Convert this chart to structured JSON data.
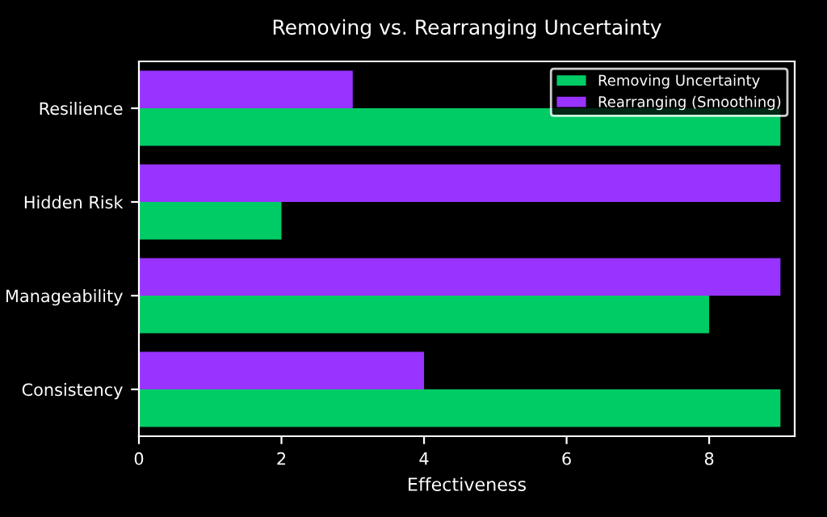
{
  "chart_data": {
    "type": "bar",
    "orientation": "horizontal",
    "title": "Removing vs. Rearranging Uncertainty",
    "xlabel": "Effectiveness",
    "categories": [
      "Resilience",
      "Hidden Risk",
      "Manageability",
      "Consistency"
    ],
    "series": [
      {
        "name": "Removing Uncertainty",
        "color": "#00cc66",
        "values": [
          9,
          2,
          8,
          9
        ]
      },
      {
        "name": "Rearranging (Smoothing)",
        "color": "#9933ff",
        "values": [
          3,
          9,
          9,
          4
        ]
      }
    ],
    "xlim": [
      0,
      9.2
    ],
    "xticks": [
      0,
      2,
      4,
      6,
      8
    ],
    "grid": false,
    "legend": "top right"
  }
}
